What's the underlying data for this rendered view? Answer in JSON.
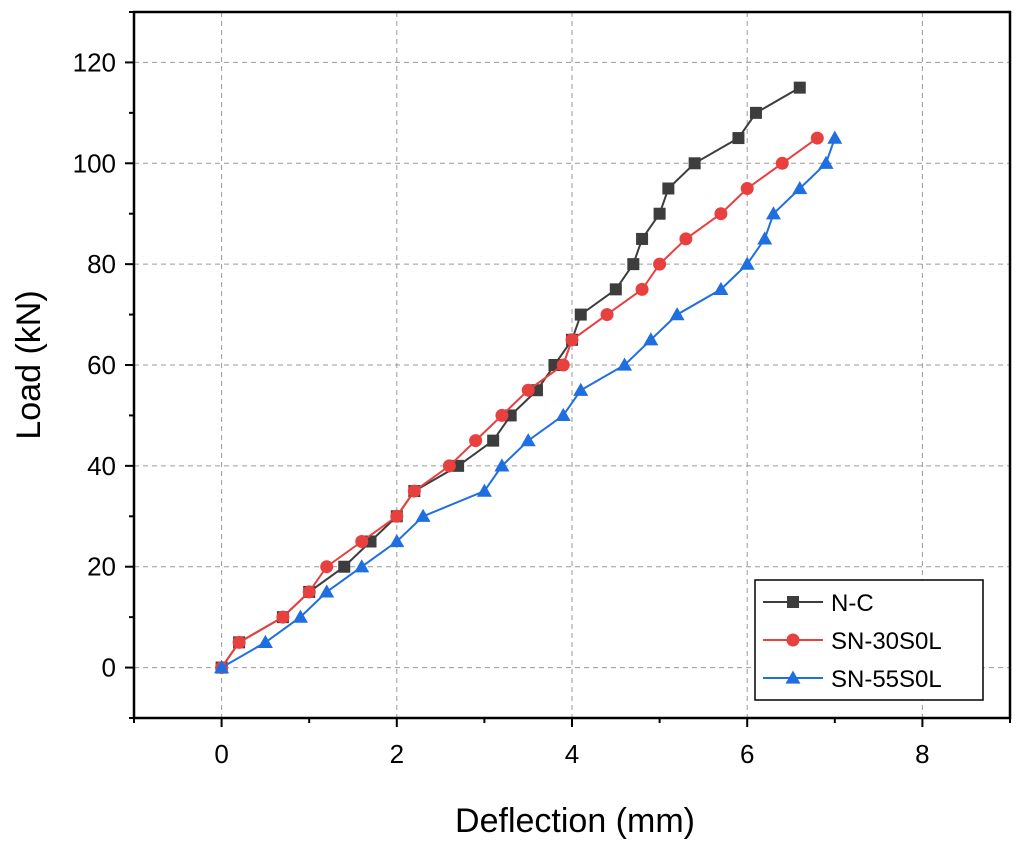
{
  "chart_data": {
    "type": "line",
    "title": "",
    "xlabel": "Deflection (mm)",
    "ylabel": "Load (kN)",
    "xlim": [
      -1,
      9
    ],
    "ylim": [
      -10,
      130
    ],
    "xticks": [
      0,
      2,
      4,
      6,
      8
    ],
    "yticks": [
      0,
      20,
      40,
      60,
      80,
      100,
      120
    ],
    "grid": true,
    "legend_position": "bottom-right",
    "series": [
      {
        "name": "N-C",
        "color": "#3d3d3d",
        "marker": "square",
        "x": [
          0,
          0.2,
          0.7,
          1.0,
          1.4,
          1.7,
          2.0,
          2.2,
          2.7,
          3.1,
          3.3,
          3.6,
          3.8,
          4.0,
          4.1,
          4.5,
          4.7,
          4.8,
          5.0,
          5.1,
          5.4,
          5.9,
          6.1,
          6.6
        ],
        "y": [
          0,
          5,
          10,
          15,
          20,
          25,
          30,
          35,
          40,
          45,
          50,
          55,
          60,
          65,
          70,
          75,
          80,
          85,
          90,
          95,
          100,
          105,
          110,
          115
        ]
      },
      {
        "name": "SN-30S0L",
        "color": "#e8403f",
        "marker": "circle",
        "x": [
          0,
          0.2,
          0.7,
          1.0,
          1.2,
          1.6,
          2.0,
          2.2,
          2.6,
          2.9,
          3.2,
          3.5,
          3.9,
          4.0,
          4.4,
          4.8,
          5.0,
          5.3,
          5.7,
          6.0,
          6.4,
          6.8
        ],
        "y": [
          0,
          5,
          10,
          15,
          20,
          25,
          30,
          35,
          40,
          45,
          50,
          55,
          60,
          65,
          70,
          75,
          80,
          85,
          90,
          95,
          100,
          105
        ]
      },
      {
        "name": "SN-55S0L",
        "color": "#1f6fe0",
        "marker": "triangle",
        "x": [
          0,
          0.5,
          0.9,
          1.2,
          1.6,
          2.0,
          2.3,
          3.0,
          3.2,
          3.5,
          3.9,
          4.1,
          4.6,
          4.9,
          5.2,
          5.7,
          6.0,
          6.2,
          6.3,
          6.6,
          6.9,
          7.0
        ],
        "y": [
          0,
          5,
          10,
          15,
          20,
          25,
          30,
          35,
          40,
          45,
          50,
          55,
          60,
          65,
          70,
          75,
          80,
          85,
          90,
          95,
          100,
          105
        ]
      }
    ]
  }
}
